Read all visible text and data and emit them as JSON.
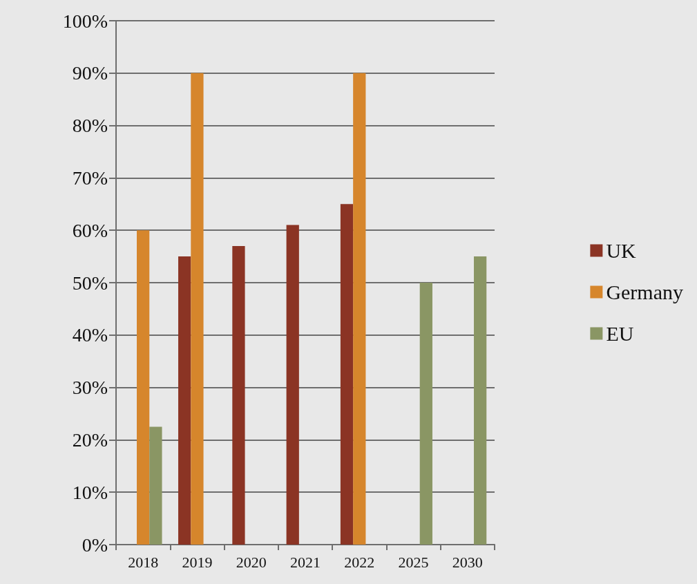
{
  "chart_data": {
    "type": "bar",
    "categories": [
      "2018",
      "2019",
      "2020",
      "2021",
      "2022",
      "2025",
      "2030"
    ],
    "series": [
      {
        "name": "UK",
        "color": "#8b3424",
        "values": [
          null,
          55,
          57,
          61,
          65,
          null,
          null
        ]
      },
      {
        "name": "Germany",
        "color": "#d6862c",
        "values": [
          60,
          90,
          null,
          null,
          90,
          null,
          null
        ]
      },
      {
        "name": "EU",
        "color": "#8a9664",
        "values": [
          22.5,
          null,
          null,
          null,
          null,
          50,
          55
        ]
      }
    ],
    "ylim": [
      0,
      100
    ],
    "yticks": [
      {
        "value": 0,
        "label": "0%"
      },
      {
        "value": 10,
        "label": "10%"
      },
      {
        "value": 20,
        "label": "20%"
      },
      {
        "value": 30,
        "label": "30%"
      },
      {
        "value": 40,
        "label": "40%"
      },
      {
        "value": 50,
        "label": "50%"
      },
      {
        "value": 60,
        "label": "60%"
      },
      {
        "value": 70,
        "label": "70%"
      },
      {
        "value": 80,
        "label": "80%"
      },
      {
        "value": 90,
        "label": "90%"
      },
      {
        "value": 100,
        "label": "100%"
      }
    ],
    "grid": "y",
    "legend": "right"
  }
}
